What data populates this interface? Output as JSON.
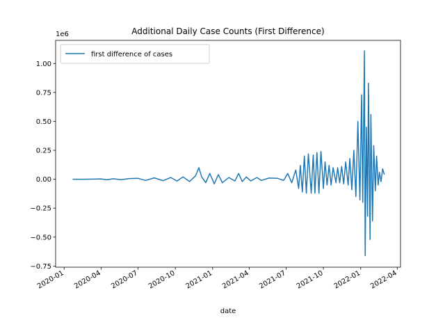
{
  "chart_data": {
    "type": "line",
    "title": "Additional Daily Case Counts (First Difference)",
    "xlabel": "date",
    "ylabel": "",
    "y_offset_label": "1e6",
    "x_is_date": true,
    "x_ticks": [
      "2020-01",
      "2020-04",
      "2020-07",
      "2020-10",
      "2021-01",
      "2021-04",
      "2021-07",
      "2021-10",
      "2022-01",
      "2022-04"
    ],
    "x_tick_dates": [
      "2020-01-01",
      "2020-04-01",
      "2020-07-01",
      "2020-10-01",
      "2021-01-01",
      "2021-04-01",
      "2021-07-01",
      "2021-10-01",
      "2022-01-01",
      "2022-04-01"
    ],
    "xlim": [
      "2019-12-11",
      "2022-04-09"
    ],
    "y_ticks": [
      -0.75,
      -0.5,
      -0.25,
      0.0,
      0.25,
      0.5,
      0.75,
      1.0
    ],
    "y_tick_labels": [
      "−0.75",
      "−0.50",
      "−0.25",
      "0.00",
      "0.25",
      "0.50",
      "0.75",
      "1.00"
    ],
    "ylim": [
      -0.76,
      1.2
    ],
    "y_unit_multiplier": 1000000,
    "legend": {
      "position": "upper left",
      "entries": [
        "first difference of cases"
      ]
    },
    "grid": false,
    "color": "#1f77b4",
    "series": [
      {
        "name": "first difference of cases",
        "x": [
          "2020-01-22",
          "2020-02-15",
          "2020-03-15",
          "2020-04-01",
          "2020-04-15",
          "2020-05-01",
          "2020-05-20",
          "2020-06-10",
          "2020-07-01",
          "2020-07-20",
          "2020-08-10",
          "2020-09-01",
          "2020-09-20",
          "2020-10-05",
          "2020-10-20",
          "2020-11-05",
          "2020-11-20",
          "2020-11-28",
          "2020-12-05",
          "2020-12-15",
          "2020-12-25",
          "2021-01-05",
          "2021-01-15",
          "2021-01-25",
          "2021-02-10",
          "2021-02-25",
          "2021-03-06",
          "2021-03-15",
          "2021-03-25",
          "2021-04-05",
          "2021-04-20",
          "2021-05-01",
          "2021-05-20",
          "2021-06-10",
          "2021-06-25",
          "2021-07-05",
          "2021-07-15",
          "2021-07-25",
          "2021-08-01",
          "2021-08-05",
          "2021-08-10",
          "2021-08-15",
          "2021-08-20",
          "2021-08-25",
          "2021-09-01",
          "2021-09-06",
          "2021-09-10",
          "2021-09-15",
          "2021-09-20",
          "2021-09-25",
          "2021-10-01",
          "2021-10-05",
          "2021-10-10",
          "2021-10-15",
          "2021-10-20",
          "2021-10-25",
          "2021-11-01",
          "2021-11-05",
          "2021-11-10",
          "2021-11-15",
          "2021-11-20",
          "2021-11-25",
          "2021-12-01",
          "2021-12-05",
          "2021-12-10",
          "2021-12-15",
          "2021-12-20",
          "2021-12-25",
          "2021-12-30",
          "2022-01-03",
          "2022-01-06",
          "2022-01-10",
          "2022-01-12",
          "2022-01-15",
          "2022-01-18",
          "2022-01-20",
          "2022-01-24",
          "2022-01-26",
          "2022-01-30",
          "2022-02-02",
          "2022-02-06",
          "2022-02-09",
          "2022-02-13",
          "2022-02-16",
          "2022-02-20",
          "2022-02-24",
          "2022-02-28"
        ],
        "values": [
          0.0,
          0.0,
          0.001,
          0.003,
          -0.005,
          0.004,
          -0.004,
          0.006,
          0.008,
          -0.01,
          0.012,
          -0.012,
          0.015,
          -0.015,
          0.02,
          -0.02,
          0.03,
          0.1,
          0.02,
          -0.03,
          0.05,
          -0.04,
          0.04,
          -0.03,
          0.015,
          -0.015,
          0.05,
          -0.02,
          0.02,
          -0.015,
          0.015,
          -0.01,
          0.01,
          0.008,
          -0.01,
          0.05,
          -0.03,
          0.08,
          -0.08,
          0.12,
          -0.11,
          0.2,
          -0.12,
          0.22,
          -0.12,
          0.21,
          -0.12,
          0.23,
          -0.12,
          0.24,
          -0.08,
          0.15,
          -0.05,
          0.12,
          -0.05,
          0.1,
          -0.03,
          0.1,
          -0.03,
          0.11,
          -0.04,
          0.15,
          -0.05,
          0.18,
          -0.09,
          0.25,
          -0.15,
          0.5,
          -0.18,
          0.73,
          -0.2,
          1.11,
          -0.66,
          0.45,
          -0.32,
          0.83,
          -0.52,
          0.56,
          -0.36,
          0.29,
          -0.1,
          0.2,
          -0.05,
          0.06,
          -0.02,
          0.09,
          0.04
        ]
      }
    ]
  }
}
